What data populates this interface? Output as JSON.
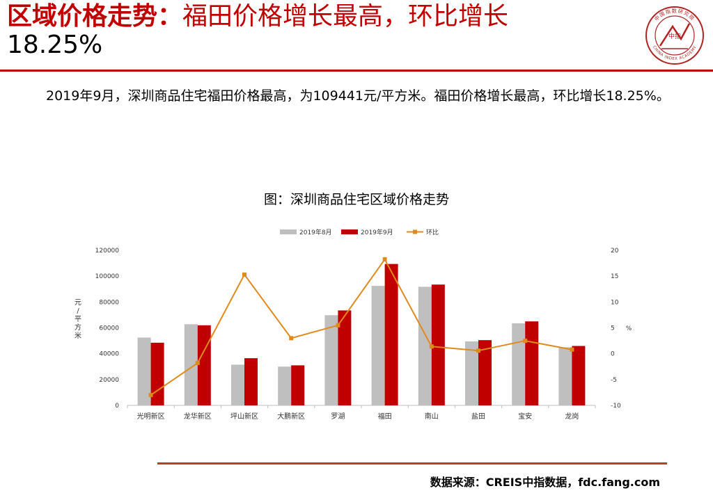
{
  "header": {
    "title_highlight": "区域价格走势：",
    "title_rest": "福田价格增长最高，环比增长",
    "title_pct": "18.25%"
  },
  "logo": {
    "text_top": "中国指数研究院",
    "text_bottom": "CHINA INDEX ACADEMY",
    "center_text": "中指",
    "colors": {
      "primary": "#b22222"
    }
  },
  "body": {
    "paragraph": "2019年9月，深圳商品住宅福田价格最高，为109441元/平方米。福田价格增长最高，环比增长18.25%。"
  },
  "chart_title": "图：深圳商品住宅区域价格走势",
  "source": "数据来源：CREIS中指数据，fdc.fang.com",
  "chart_data": {
    "type": "bar",
    "title": "",
    "categories": [
      "光明新区",
      "龙华新区",
      "坪山新区",
      "大鹏新区",
      "罗湖",
      "福田",
      "南山",
      "盐田",
      "宝安",
      "龙岗"
    ],
    "series": [
      {
        "name": "2019年8月",
        "type": "bar",
        "axis": "left",
        "color": "#bfbfbf",
        "values": [
          52500,
          62800,
          31500,
          30000,
          69800,
          92500,
          91800,
          49500,
          63500,
          45000
        ]
      },
      {
        "name": "2019年9月",
        "type": "bar",
        "axis": "left",
        "color": "#c00000",
        "values": [
          48500,
          62000,
          36500,
          31000,
          73500,
          109441,
          93500,
          50500,
          65000,
          46000
        ]
      },
      {
        "name": "环比",
        "type": "line",
        "axis": "right",
        "color": "#e08a1e",
        "values": [
          -8,
          -1.8,
          15.3,
          3,
          5.5,
          18.25,
          1.4,
          0.6,
          2.5,
          0.8
        ]
      }
    ],
    "ylabel": "元/平方米",
    "y2label": "%",
    "ylim": [
      0,
      120000
    ],
    "yticks": [
      0,
      20000,
      40000,
      60000,
      80000,
      100000,
      120000
    ],
    "y2lim": [
      -10,
      20
    ],
    "y2ticks": [
      -10,
      -5,
      0,
      5,
      10,
      15,
      20
    ],
    "legend_position": "top",
    "grid": false
  }
}
